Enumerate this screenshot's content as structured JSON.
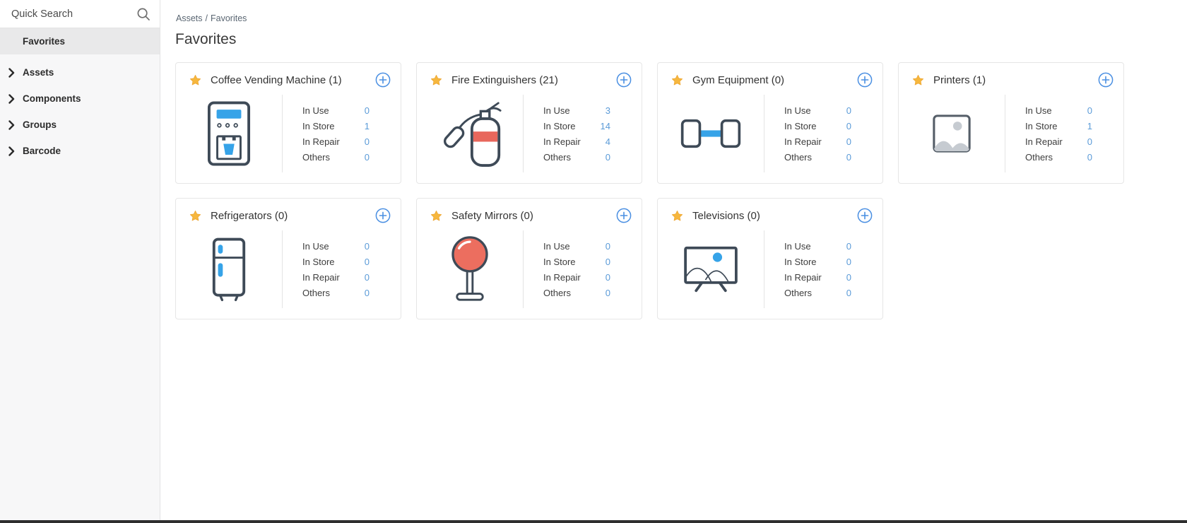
{
  "sidebar": {
    "search": {
      "placeholder": "Quick Search",
      "icon": "search-icon"
    },
    "items": [
      {
        "label": "Favorites",
        "selected": true,
        "expandable": false
      },
      {
        "label": "Assets",
        "selected": false,
        "expandable": true
      },
      {
        "label": "Components",
        "selected": false,
        "expandable": true
      },
      {
        "label": "Groups",
        "selected": false,
        "expandable": true
      },
      {
        "label": "Barcode",
        "selected": false,
        "expandable": true
      }
    ]
  },
  "breadcrumb": {
    "parts": [
      "Assets",
      "Favorites"
    ],
    "separator": "/"
  },
  "page": {
    "title": "Favorites"
  },
  "stat_labels": [
    "In Use",
    "In Store",
    "In Repair",
    "Others"
  ],
  "cards": [
    {
      "title": "Coffee Vending Machine (1)",
      "name": "Coffee Vending Machine",
      "count": 1,
      "icon": "coffee-vending-machine-icon",
      "stats": [
        {
          "label": "In Use",
          "value": 0
        },
        {
          "label": "In Store",
          "value": 1
        },
        {
          "label": "In Repair",
          "value": 0
        },
        {
          "label": "Others",
          "value": 0
        }
      ]
    },
    {
      "title": "Fire Extinguishers (21)",
      "name": "Fire Extinguishers",
      "count": 21,
      "icon": "fire-extinguisher-icon",
      "stats": [
        {
          "label": "In Use",
          "value": 3
        },
        {
          "label": "In Store",
          "value": 14
        },
        {
          "label": "In Repair",
          "value": 4
        },
        {
          "label": "Others",
          "value": 0
        }
      ]
    },
    {
      "title": "Gym Equipment (0)",
      "name": "Gym Equipment",
      "count": 0,
      "icon": "dumbbell-icon",
      "stats": [
        {
          "label": "In Use",
          "value": 0
        },
        {
          "label": "In Store",
          "value": 0
        },
        {
          "label": "In Repair",
          "value": 0
        },
        {
          "label": "Others",
          "value": 0
        }
      ]
    },
    {
      "title": "Printers (1)",
      "name": "Printers",
      "count": 1,
      "icon": "image-placeholder-icon",
      "stats": [
        {
          "label": "In Use",
          "value": 0
        },
        {
          "label": "In Store",
          "value": 1
        },
        {
          "label": "In Repair",
          "value": 0
        },
        {
          "label": "Others",
          "value": 0
        }
      ]
    },
    {
      "title": "Refrigerators (0)",
      "name": "Refrigerators",
      "count": 0,
      "icon": "refrigerator-icon",
      "stats": [
        {
          "label": "In Use",
          "value": 0
        },
        {
          "label": "In Store",
          "value": 0
        },
        {
          "label": "In Repair",
          "value": 0
        },
        {
          "label": "Others",
          "value": 0
        }
      ]
    },
    {
      "title": "Safety Mirrors (0)",
      "name": "Safety Mirrors",
      "count": 0,
      "icon": "safety-mirror-icon",
      "stats": [
        {
          "label": "In Use",
          "value": 0
        },
        {
          "label": "In Store",
          "value": 0
        },
        {
          "label": "In Repair",
          "value": 0
        },
        {
          "label": "Others",
          "value": 0
        }
      ]
    },
    {
      "title": "Televisions (0)",
      "name": "Televisions",
      "count": 0,
      "icon": "television-icon",
      "stats": [
        {
          "label": "In Use",
          "value": 0
        },
        {
          "label": "In Store",
          "value": 0
        },
        {
          "label": "In Repair",
          "value": 0
        },
        {
          "label": "Others",
          "value": 0
        }
      ]
    }
  ],
  "icons": {
    "favorite": "star-icon",
    "add": "add-icon",
    "expand": "chevron-right-icon"
  },
  "colors": {
    "stat_value_blue": "#5b9bd8",
    "add_button_blue": "#4a8fe2",
    "star_gold": "#f6b73e",
    "icon_outline_dark": "#3e4a57",
    "icon_accent_blue": "#36a3e8",
    "icon_accent_red": "#ec6e5f",
    "sidebar_bg": "#f7f7f8",
    "sidebar_selected_bg": "#e9e9ea",
    "card_border": "#e6e6e6"
  }
}
